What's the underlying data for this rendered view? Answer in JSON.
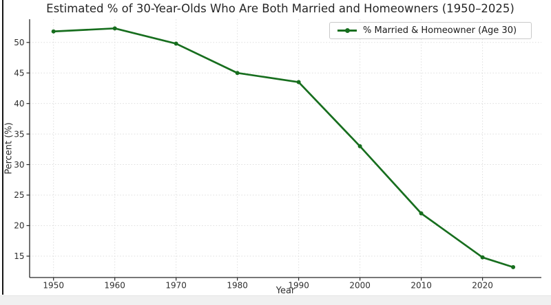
{
  "window": {
    "figure_background": "#ffffff",
    "page_background": "#f0f0f0",
    "left_border_color": "#141414"
  },
  "title": "Estimated % of 30-Year-Olds Who Are Both Married and Homeowners (1950–2025)",
  "axes": {
    "xlabel": "Year",
    "ylabel": "Percent (%)"
  },
  "legend": {
    "label": "% Married & Homeowner (Age 30)",
    "position": "upper right"
  },
  "colors": {
    "line": "#176e1e",
    "title_text": "#262626",
    "tick_text": "#2e2e2e",
    "grid": "#d8d8d8",
    "spine": "#262626",
    "legend_border": "#c9c9c9"
  },
  "chart_data": {
    "type": "line",
    "title": "Estimated % of 30-Year-Olds Who Are Both Married and Homeowners (1950–2025)",
    "xlabel": "Year",
    "ylabel": "Percent (%)",
    "x": [
      1950,
      1960,
      1970,
      1980,
      1990,
      2000,
      2010,
      2020,
      2025
    ],
    "series": [
      {
        "name": "% Married & Homeowner (Age 30)",
        "color": "#176e1e",
        "marker": "point",
        "values": [
          51.8,
          52.3,
          49.8,
          45.0,
          43.5,
          33.0,
          22.0,
          14.8,
          13.2
        ]
      }
    ],
    "xticks": [
      1950,
      1960,
      1970,
      1980,
      1990,
      2000,
      2010,
      2020
    ],
    "yticks": [
      15,
      20,
      25,
      30,
      35,
      40,
      45,
      50
    ],
    "xlim": [
      1946.1,
      2029.6
    ],
    "ylim": [
      11.5,
      53.8
    ],
    "grid": true,
    "grid_style": "dotted",
    "legend_position": "upper right"
  }
}
